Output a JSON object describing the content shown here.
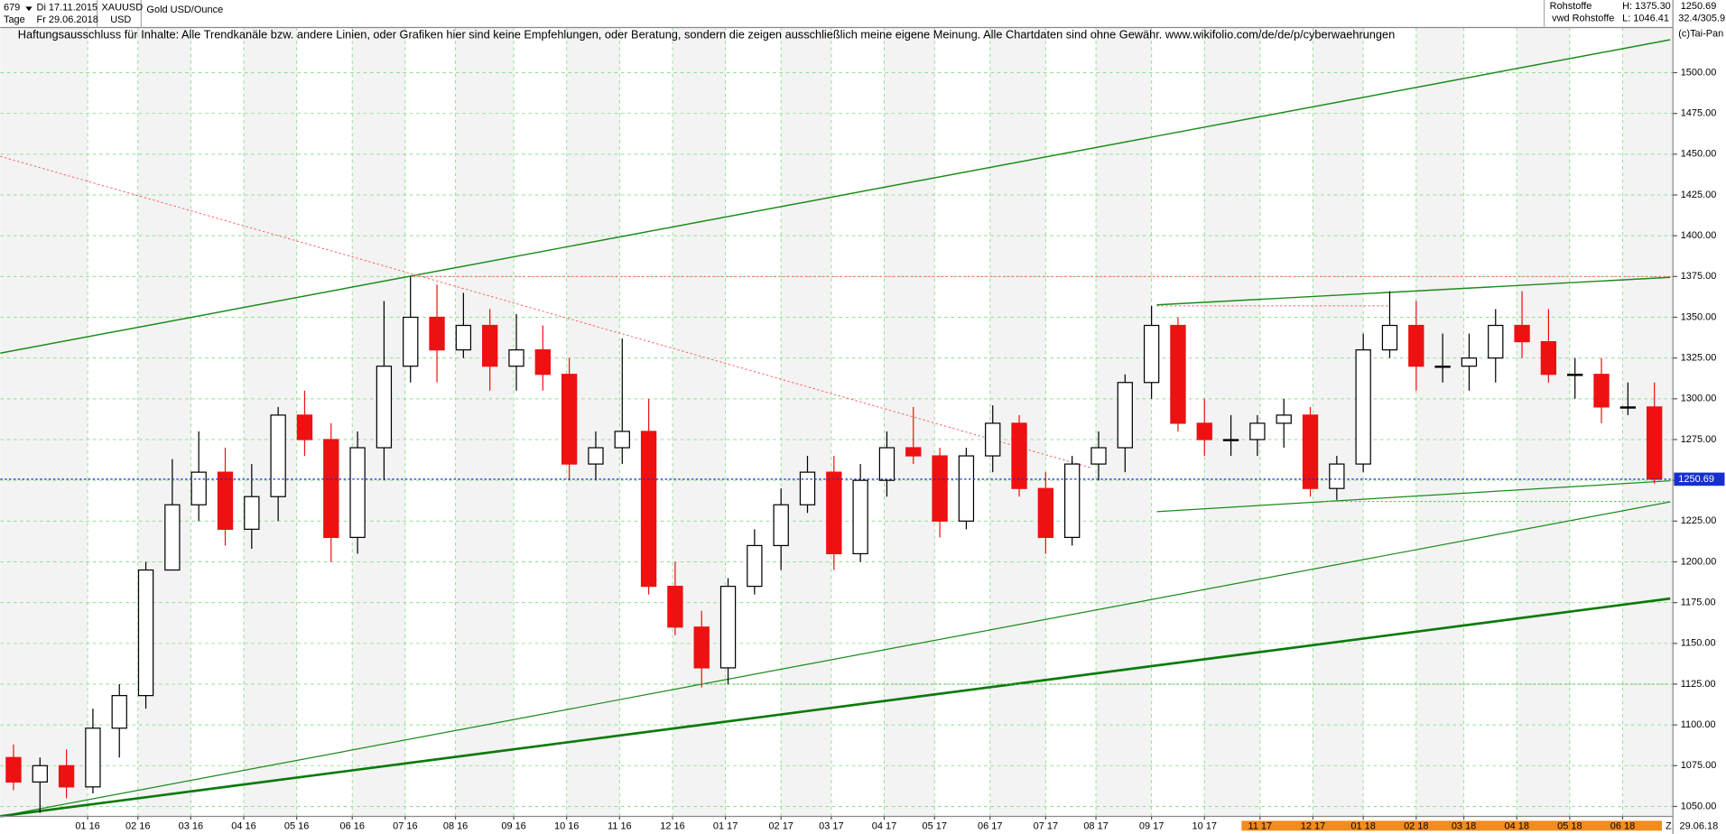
{
  "header": {
    "count": "679",
    "start_date": "Di 17.11.2015",
    "period": "Tage",
    "end_date": "Fr 29.06.2018",
    "symbol": "XAUUSD",
    "currency": "USD",
    "instrument": "Gold USD/Ounce",
    "group": "Rohstoffe",
    "source": "vwd Rohstoffe",
    "high": "H: 1375.30",
    "low": "L: 1046.41",
    "last": "1250.69",
    "ratio": "32.4/305.9",
    "copyright": "(c)Tai-Pan"
  },
  "chart_data": {
    "type": "candlestick",
    "annotation": "Haftungsausschluss für Inhalte: Alle Trendkanäle bzw. andere Linien, oder Grafiken hier sind keine Empfehlungen, oder Beratung, sondern die zeigen ausschließlich meine eigene Meinung. Alle Chartdaten sind ohne Gewähr.  www.wikifolio.com/de/de/p/cyberwaehrungen",
    "open": [
      1080,
      1065,
      1075,
      1062,
      1098,
      1118,
      1195,
      1235,
      1255,
      1220,
      1240,
      1290,
      1275,
      1215,
      1270,
      1320,
      1350,
      1330,
      1345,
      1320,
      1330,
      1315,
      1260,
      1270,
      1280,
      1185,
      1160,
      1135,
      1185,
      1210,
      1235,
      1255,
      1205,
      1250,
      1270,
      1265,
      1225,
      1265,
      1285,
      1245,
      1215,
      1260,
      1270,
      1310,
      1345,
      1285,
      1275,
      1275,
      1285,
      1290,
      1245,
      1260,
      1330,
      1345,
      1320,
      1320,
      1325,
      1345,
      1335,
      1315,
      1315,
      1295,
      1295
    ],
    "high": [
      1088,
      1080,
      1085,
      1110,
      1125,
      1200,
      1263,
      1280,
      1270,
      1260,
      1295,
      1305,
      1285,
      1280,
      1360,
      1375,
      1370,
      1365,
      1355,
      1352,
      1345,
      1325,
      1280,
      1337,
      1300,
      1200,
      1170,
      1190,
      1220,
      1245,
      1265,
      1265,
      1260,
      1280,
      1295,
      1270,
      1270,
      1296,
      1290,
      1255,
      1265,
      1280,
      1315,
      1357,
      1350,
      1300,
      1290,
      1290,
      1300,
      1295,
      1265,
      1340,
      1366,
      1360,
      1340,
      1340,
      1355,
      1366,
      1355,
      1325,
      1325,
      1310,
      1310
    ],
    "low": [
      1060,
      1046,
      1055,
      1058,
      1080,
      1110,
      1195,
      1225,
      1210,
      1208,
      1225,
      1265,
      1200,
      1205,
      1250,
      1310,
      1310,
      1325,
      1305,
      1305,
      1305,
      1250,
      1250,
      1260,
      1180,
      1155,
      1123,
      1125,
      1180,
      1195,
      1230,
      1195,
      1200,
      1240,
      1260,
      1215,
      1220,
      1255,
      1240,
      1205,
      1210,
      1250,
      1255,
      1300,
      1280,
      1265,
      1265,
      1265,
      1270,
      1240,
      1238,
      1255,
      1325,
      1305,
      1310,
      1305,
      1310,
      1325,
      1310,
      1300,
      1285,
      1290,
      1248
    ],
    "close": [
      1065,
      1075,
      1062,
      1098,
      1118,
      1195,
      1235,
      1255,
      1220,
      1240,
      1290,
      1275,
      1215,
      1270,
      1320,
      1350,
      1330,
      1345,
      1320,
      1330,
      1315,
      1260,
      1270,
      1280,
      1185,
      1160,
      1135,
      1185,
      1210,
      1235,
      1255,
      1205,
      1250,
      1270,
      1265,
      1225,
      1265,
      1285,
      1245,
      1215,
      1260,
      1270,
      1310,
      1345,
      1285,
      1275,
      1275,
      1285,
      1290,
      1245,
      1260,
      1330,
      1345,
      1320,
      1320,
      1325,
      1345,
      1335,
      1315,
      1315,
      1295,
      1295,
      1250.69
    ],
    "up_color": "#000000",
    "down_color": "#ee1111",
    "last_price": 1250.69,
    "last_color": "#1530d0",
    "xlim": [
      0,
      63.2
    ],
    "ylim": [
      1043.9,
      1527.7
    ],
    "xticks": [
      {
        "value": 3.3,
        "label": "01 16"
      },
      {
        "value": 5.2,
        "label": "02 16"
      },
      {
        "value": 7.2,
        "label": "03 16"
      },
      {
        "value": 9.2,
        "label": "04 16"
      },
      {
        "value": 11.2,
        "label": "05 16"
      },
      {
        "value": 13.3,
        "label": "06 16"
      },
      {
        "value": 15.3,
        "label": "07 16"
      },
      {
        "value": 17.2,
        "label": "08 16"
      },
      {
        "value": 19.4,
        "label": "09 16"
      },
      {
        "value": 21.4,
        "label": "10 16"
      },
      {
        "value": 23.4,
        "label": "11 16"
      },
      {
        "value": 25.4,
        "label": "12 16"
      },
      {
        "value": 27.4,
        "label": "01 17"
      },
      {
        "value": 29.5,
        "label": "02 17"
      },
      {
        "value": 31.4,
        "label": "03 17"
      },
      {
        "value": 33.4,
        "label": "04 17"
      },
      {
        "value": 35.3,
        "label": "05 17"
      },
      {
        "value": 37.4,
        "label": "06 17"
      },
      {
        "value": 39.5,
        "label": "07 17"
      },
      {
        "value": 41.4,
        "label": "08 17"
      },
      {
        "value": 43.5,
        "label": "09 17"
      },
      {
        "value": 45.5,
        "label": "10 17"
      },
      {
        "value": 47.6,
        "label": "11 17"
      },
      {
        "value": 49.6,
        "label": "12 17"
      },
      {
        "value": 51.5,
        "label": "01 18"
      },
      {
        "value": 53.5,
        "label": "02 18"
      },
      {
        "value": 55.3,
        "label": "03 18"
      },
      {
        "value": 57.3,
        "label": "04 18"
      },
      {
        "value": 59.3,
        "label": "05 18"
      },
      {
        "value": 61.3,
        "label": "06 18"
      }
    ],
    "end_marker": "Z",
    "end_label": "29.06.18",
    "yticks": [
      {
        "value": 1050,
        "label": "1050.00"
      },
      {
        "value": 1075,
        "label": "1075.00"
      },
      {
        "value": 1100,
        "label": "1100.00"
      },
      {
        "value": 1125,
        "label": "1125.00"
      },
      {
        "value": 1150,
        "label": "1150.00"
      },
      {
        "value": 1175,
        "label": "1175.00"
      },
      {
        "value": 1200,
        "label": "1200.00"
      },
      {
        "value": 1225,
        "label": "1225.00"
      },
      {
        "value": 1250,
        "label": "1250.00"
      },
      {
        "value": 1275,
        "label": "1275.00"
      },
      {
        "value": 1300,
        "label": "1300.00"
      },
      {
        "value": 1325,
        "label": "1325.00"
      },
      {
        "value": 1350,
        "label": "1350.00"
      },
      {
        "value": 1375,
        "label": "1375.00"
      },
      {
        "value": 1400,
        "label": "1400.00"
      },
      {
        "value": 1425,
        "label": "1425.00"
      },
      {
        "value": 1450,
        "label": "1450.00"
      },
      {
        "value": 1475,
        "label": "1475.00"
      },
      {
        "value": 1500,
        "label": "1500.00"
      }
    ],
    "grid": true,
    "grid_color": "#8fe08f",
    "trendlines": [
      {
        "color": "#1a8a1a",
        "width": 1.2,
        "dash": "none",
        "x": [
          0,
          63.1
        ],
        "y": [
          1328,
          1520.2
        ]
      },
      {
        "color": "#1a8a1a",
        "width": 1,
        "dash": "none",
        "x": [
          0,
          63.1
        ],
        "y": [
          1044,
          1236.8
        ]
      },
      {
        "color": "#0b7a0b",
        "width": 2.2,
        "dash": "none",
        "x": [
          0,
          63.1
        ],
        "y": [
          1044,
          1177.5
        ]
      },
      {
        "color": "#ff6060",
        "width": 0.8,
        "dash": "2 2",
        "x": [
          0,
          41.2
        ],
        "y": [
          1448.7,
          1257.8
        ]
      },
      {
        "color": "#ff6060",
        "width": 0.8,
        "dash": "2 2",
        "x": [
          15.6,
          63.1
        ],
        "y": [
          1375,
          1375
        ]
      },
      {
        "color": "#1a8a1a",
        "width": 1.2,
        "dash": "none",
        "x": [
          43.7,
          63.1
        ],
        "y": [
          1357.6,
          1374.5
        ]
      },
      {
        "color": "#1a8a1a",
        "width": 1,
        "dash": "none",
        "x": [
          43.7,
          63.1
        ],
        "y": [
          1230.8,
          1249.7
        ]
      },
      {
        "color": "#ff6060",
        "width": 0.8,
        "dash": "2 2",
        "x": [
          43.7,
          52.5
        ],
        "y": [
          1357,
          1357
        ]
      },
      {
        "color": "#4cbf4c",
        "width": 0.8,
        "dash": "2 2",
        "x": [
          26,
          63.1
        ],
        "y": [
          1125,
          1125
        ]
      },
      {
        "color": "#4cbf4c",
        "width": 0.8,
        "dash": "2 2",
        "x": [
          50,
          63.1
        ],
        "y": [
          1237,
          1237
        ]
      }
    ]
  }
}
